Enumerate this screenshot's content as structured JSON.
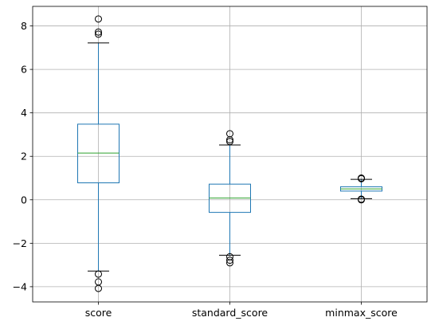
{
  "chart_data": {
    "type": "boxplot",
    "title": "",
    "xlabel": "",
    "ylabel": "",
    "ylim": [
      -4.7,
      8.9
    ],
    "yticks": [
      -4,
      -2,
      0,
      2,
      4,
      6,
      8
    ],
    "ytick_labels": [
      "−4",
      "−2",
      "0",
      "2",
      "4",
      "6",
      "8"
    ],
    "grid": true,
    "categories": [
      "score",
      "standard_score",
      "minmax_score"
    ],
    "boxes": [
      {
        "name": "score",
        "q1": 0.78,
        "median": 2.15,
        "q3": 3.48,
        "whisker_low": -3.28,
        "whisker_high": 7.22,
        "outliers": [
          8.32,
          7.72,
          7.62,
          -3.42,
          -3.78,
          -4.08
        ]
      },
      {
        "name": "standard_score",
        "q1": -0.58,
        "median": 0.08,
        "q3": 0.72,
        "whisker_low": -2.55,
        "whisker_high": 2.52,
        "outliers": [
          3.04,
          2.76,
          2.68,
          -2.62,
          -2.78,
          -2.9
        ]
      },
      {
        "name": "minmax_score",
        "q1": 0.4,
        "median": 0.5,
        "q3": 0.6,
        "whisker_low": 0.05,
        "whisker_high": 0.94,
        "outliers": [
          1.0,
          0.97,
          0.0,
          0.03
        ]
      }
    ],
    "colors": {
      "box": "#1f77b4",
      "median": "#2ca02c",
      "whisker_cap": "#000000",
      "outlier": "#000000",
      "grid": "#b0b0b0",
      "axes": "#000000"
    }
  }
}
